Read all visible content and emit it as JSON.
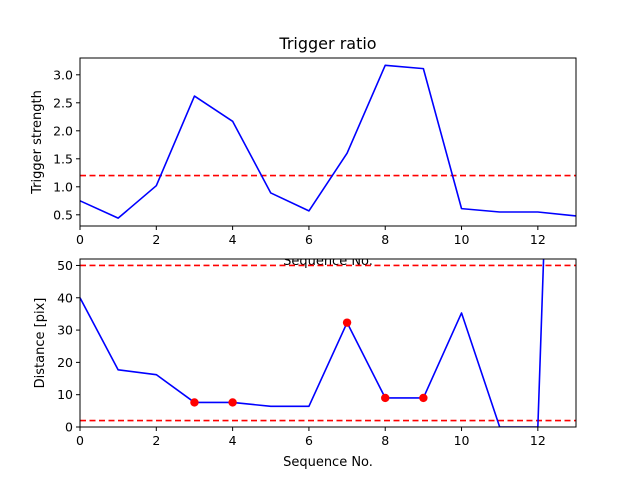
{
  "chart_data": [
    {
      "type": "line",
      "title": "Trigger ratio",
      "xlabel": "Sequence No.",
      "ylabel": "Trigger strength",
      "xlim": [
        0,
        13
      ],
      "ylim": [
        0.3,
        3.3
      ],
      "xticks": [
        "0",
        "2",
        "4",
        "6",
        "8",
        "10",
        "12"
      ],
      "yticks": [
        "0.5",
        "1.0",
        "1.5",
        "2.0",
        "2.5",
        "3.0"
      ],
      "series": [
        {
          "color": "#0000ff",
          "x": [
            0,
            1,
            2,
            3,
            4,
            5,
            6,
            7,
            8,
            9,
            10,
            11,
            12,
            13
          ],
          "values": [
            0.75,
            0.44,
            1.02,
            2.62,
            2.17,
            0.89,
            0.57,
            1.6,
            3.17,
            3.11,
            0.61,
            0.55,
            0.55,
            0.48
          ]
        }
      ],
      "hlines": [
        {
          "y": 1.2,
          "color": "#ff0000",
          "style": "dashed"
        }
      ]
    },
    {
      "type": "line",
      "title": "",
      "xlabel": "Sequence No.",
      "ylabel": "Distance [pix]",
      "xlim": [
        0,
        13
      ],
      "ylim": [
        0,
        52
      ],
      "xticks": [
        "0",
        "2",
        "4",
        "6",
        "8",
        "10",
        "12"
      ],
      "yticks": [
        "0",
        "10",
        "20",
        "30",
        "40",
        "50"
      ],
      "series": [
        {
          "color": "#0000ff",
          "x": [
            0,
            1,
            2,
            3,
            4,
            5,
            6,
            7,
            8,
            9,
            10,
            11,
            12,
            12.15
          ],
          "values": [
            40,
            17.7,
            16.2,
            7.6,
            7.6,
            6.4,
            6.4,
            32.3,
            9.0,
            9.0,
            35.3,
            0,
            0,
            52
          ]
        }
      ],
      "markers": {
        "color": "#ff0000",
        "x": [
          3,
          4,
          7,
          8,
          9
        ],
        "values": [
          7.6,
          7.6,
          32.3,
          9.0,
          9.0
        ]
      },
      "hlines": [
        {
          "y": 50,
          "color": "#ff0000",
          "style": "dashed"
        },
        {
          "y": 2,
          "color": "#ff0000",
          "style": "dashed"
        }
      ]
    }
  ]
}
